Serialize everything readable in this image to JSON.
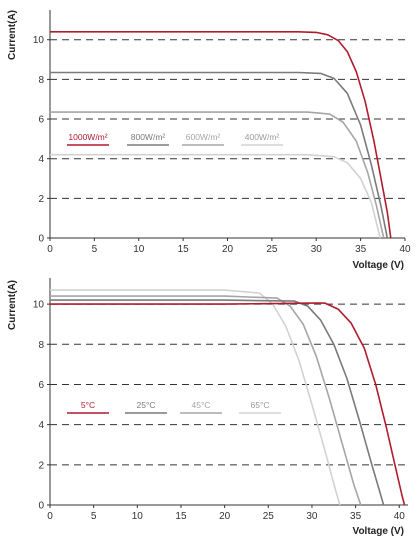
{
  "chart_data": [
    {
      "type": "line",
      "xlabel": "Voltage  (V)",
      "ylabel": "Current(A)",
      "xlim": [
        0,
        40
      ],
      "ylim": [
        0,
        11.5
      ],
      "x_ticks": [
        0,
        5,
        10,
        15,
        20,
        25,
        30,
        35,
        40
      ],
      "y_ticks": [
        0,
        2,
        4,
        6,
        8,
        10
      ],
      "y_tick_labels": [
        "0",
        "2",
        "4",
        "6",
        "8",
        "10"
      ],
      "grid": "horizontal dashed",
      "legend": {
        "placement": "center-left"
      },
      "series": [
        {
          "name": "1000W/m²",
          "color": "#b01c2e",
          "points": [
            [
              0,
              10.4
            ],
            [
              10,
              10.4
            ],
            [
              20,
              10.4
            ],
            [
              28,
              10.4
            ],
            [
              30,
              10.37
            ],
            [
              31.3,
              10.25
            ],
            [
              32.5,
              9.95
            ],
            [
              33.5,
              9.4
            ],
            [
              34.5,
              8.4
            ],
            [
              35.5,
              6.9
            ],
            [
              36.5,
              4.9
            ],
            [
              37.3,
              3.0
            ],
            [
              38,
              1.3
            ],
            [
              38.4,
              0
            ]
          ]
        },
        {
          "name": "800W/m²",
          "color": "#7a7a7a",
          "points": [
            [
              0,
              8.35
            ],
            [
              10,
              8.35
            ],
            [
              20,
              8.35
            ],
            [
              28,
              8.35
            ],
            [
              30.5,
              8.3
            ],
            [
              32,
              8.05
            ],
            [
              33.5,
              7.3
            ],
            [
              35,
              5.7
            ],
            [
              36.2,
              3.7
            ],
            [
              37.3,
              1.6
            ],
            [
              38,
              0
            ]
          ]
        },
        {
          "name": "600W/m²",
          "color": "#a5a5a5",
          "points": [
            [
              0,
              6.35
            ],
            [
              10,
              6.35
            ],
            [
              20,
              6.35
            ],
            [
              29,
              6.35
            ],
            [
              31.5,
              6.25
            ],
            [
              33,
              5.85
            ],
            [
              34.5,
              4.9
            ],
            [
              35.8,
              3.3
            ],
            [
              36.8,
              1.6
            ],
            [
              37.6,
              0
            ]
          ]
        },
        {
          "name": "400W/m²",
          "color": "#d2d2d2",
          "points": [
            [
              0,
              4.2
            ],
            [
              10,
              4.2
            ],
            [
              20,
              4.2
            ],
            [
              29,
              4.2
            ],
            [
              32,
              4.1
            ],
            [
              33.5,
              3.8
            ],
            [
              35,
              3.0
            ],
            [
              36.2,
              1.8
            ],
            [
              37.2,
              0
            ]
          ]
        }
      ]
    },
    {
      "type": "line",
      "xlabel": "Voltage  (V)",
      "ylabel": "Current(A)",
      "xlim": [
        0,
        41
      ],
      "ylim": [
        0,
        11.3
      ],
      "x_ticks": [
        0,
        5,
        10,
        15,
        20,
        25,
        30,
        35,
        40
      ],
      "y_ticks": [
        0,
        2,
        4,
        6,
        8,
        10
      ],
      "y_tick_labels": [
        "0",
        "2",
        "4",
        "6",
        "8",
        "10"
      ],
      "grid": "horizontal dashed",
      "legend": {
        "placement": "center-left"
      },
      "series": [
        {
          "name": "5°C",
          "color": "#b01c2e",
          "points": [
            [
              0,
              10.0
            ],
            [
              20,
              10.0
            ],
            [
              30,
              10.05
            ],
            [
              31.5,
              10.05
            ],
            [
              33,
              9.75
            ],
            [
              34.5,
              9.05
            ],
            [
              36,
              7.8
            ],
            [
              37.3,
              6.0
            ],
            [
              38.5,
              3.9
            ],
            [
              39.5,
              2.0
            ],
            [
              40.3,
              0.5
            ],
            [
              40.6,
              0
            ]
          ]
        },
        {
          "name": "25°C",
          "color": "#7a7a7a",
          "points": [
            [
              0,
              10.2
            ],
            [
              20,
              10.2
            ],
            [
              28,
              10.15
            ],
            [
              29.5,
              9.9
            ],
            [
              31,
              9.2
            ],
            [
              32.5,
              8.0
            ],
            [
              34,
              6.3
            ],
            [
              35.5,
              4.1
            ],
            [
              36.8,
              2.1
            ],
            [
              37.8,
              0.6
            ],
            [
              38.2,
              0
            ]
          ]
        },
        {
          "name": "45°C",
          "color": "#a5a5a5",
          "points": [
            [
              0,
              10.4
            ],
            [
              20,
              10.4
            ],
            [
              26,
              10.3
            ],
            [
              27.5,
              9.9
            ],
            [
              29,
              9.0
            ],
            [
              30.5,
              7.4
            ],
            [
              32,
              5.3
            ],
            [
              33.5,
              3.0
            ],
            [
              34.8,
              1.0
            ],
            [
              35.6,
              0
            ]
          ]
        },
        {
          "name": "65°C",
          "color": "#d2d2d2",
          "points": [
            [
              0,
              10.7
            ],
            [
              20,
              10.7
            ],
            [
              24,
              10.55
            ],
            [
              25.5,
              10.0
            ],
            [
              27,
              8.9
            ],
            [
              28.5,
              7.2
            ],
            [
              30,
              5.0
            ],
            [
              31.5,
              2.7
            ],
            [
              32.6,
              0.9
            ],
            [
              33.2,
              0
            ]
          ]
        }
      ]
    }
  ]
}
